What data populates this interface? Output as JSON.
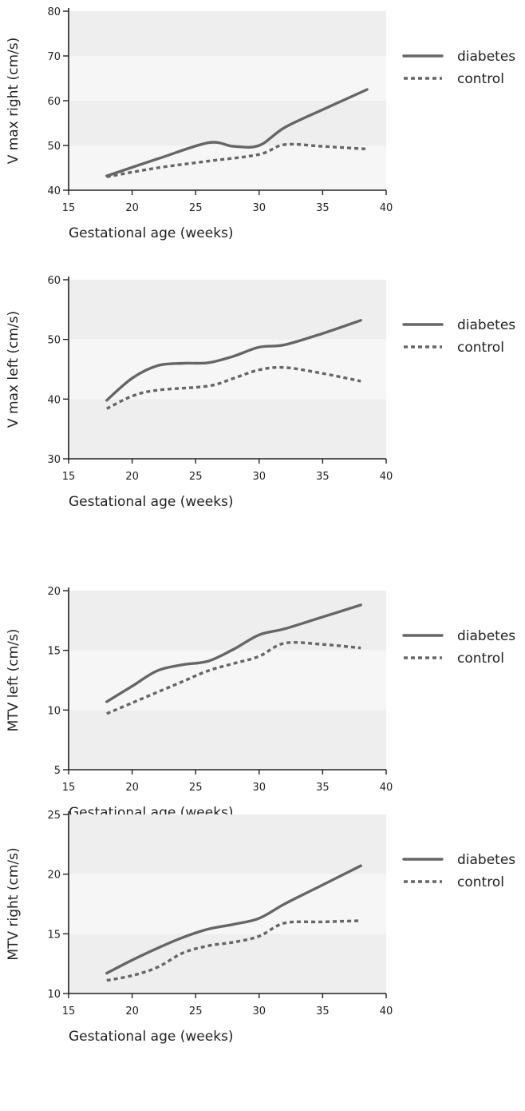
{
  "chart_data": [
    {
      "type": "line",
      "xlabel": "Gestational age (weeks)",
      "ylabel": "V max right (cm/s)",
      "xlim": [
        15,
        40
      ],
      "ylim": [
        40,
        80
      ],
      "xticks": [
        15,
        20,
        25,
        30,
        35,
        40
      ],
      "yticks": [
        40,
        50,
        60,
        70,
        80
      ],
      "legend": "right",
      "series": [
        {
          "name": "diabetes",
          "style": "solid",
          "color": "#666666",
          "x": [
            18,
            22,
            26,
            28,
            30,
            32,
            35,
            38.5
          ],
          "y": [
            43.2,
            47,
            50.6,
            49.8,
            50,
            54,
            58,
            62.5
          ]
        },
        {
          "name": "control",
          "style": "dotted",
          "color": "#666666",
          "x": [
            18,
            22,
            26,
            30,
            32,
            35,
            38.5
          ],
          "y": [
            43,
            45,
            46.5,
            48,
            50.2,
            49.8,
            49.2
          ]
        }
      ]
    },
    {
      "type": "line",
      "xlabel": "Gestational age (weeks)",
      "ylabel": "V max left (cm/s)",
      "xlim": [
        15,
        40
      ],
      "ylim": [
        30,
        60
      ],
      "xticks": [
        15,
        20,
        25,
        30,
        35,
        40
      ],
      "yticks": [
        30,
        40,
        50,
        60
      ],
      "legend": "right",
      "series": [
        {
          "name": "diabetes",
          "style": "solid",
          "color": "#666666",
          "x": [
            18,
            20,
            22,
            24,
            26,
            28,
            30,
            32,
            35,
            38
          ],
          "y": [
            39.8,
            43.5,
            45.6,
            46,
            46.1,
            47.2,
            48.7,
            49.1,
            51,
            53.2
          ]
        },
        {
          "name": "control",
          "style": "dotted",
          "color": "#666666",
          "x": [
            18,
            20,
            22,
            26,
            28,
            30,
            32,
            35,
            38
          ],
          "y": [
            38.4,
            40.5,
            41.5,
            42.2,
            43.5,
            44.9,
            45.3,
            44.3,
            43
          ]
        }
      ]
    },
    {
      "type": "line",
      "xlabel": "Gestational age (weeks)",
      "ylabel": "MTV left (cm/s)",
      "xlim": [
        15,
        40
      ],
      "ylim": [
        5,
        20
      ],
      "xticks": [
        15,
        20,
        25,
        30,
        35,
        40
      ],
      "yticks": [
        5,
        10,
        15,
        20
      ],
      "legend": "right",
      "series": [
        {
          "name": "diabetes",
          "style": "solid",
          "color": "#666666",
          "x": [
            18,
            20,
            22,
            24,
            26,
            28,
            30,
            32,
            35,
            38
          ],
          "y": [
            10.7,
            12,
            13.3,
            13.8,
            14.1,
            15.1,
            16.3,
            16.8,
            17.8,
            18.8
          ]
        },
        {
          "name": "control",
          "style": "dotted",
          "color": "#666666",
          "x": [
            18,
            20,
            22,
            24,
            26,
            28,
            30,
            32,
            35,
            38
          ],
          "y": [
            9.7,
            10.6,
            11.5,
            12.4,
            13.3,
            13.9,
            14.5,
            15.6,
            15.5,
            15.2
          ]
        }
      ]
    },
    {
      "type": "line",
      "xlabel": "Gestational age (weeks)",
      "ylabel": "MTV right (cm/s)",
      "xlim": [
        15,
        40
      ],
      "ylim": [
        10,
        25
      ],
      "xticks": [
        15,
        20,
        25,
        30,
        35,
        40
      ],
      "yticks": [
        10,
        15,
        20,
        25
      ],
      "legend": "right",
      "series": [
        {
          "name": "diabetes",
          "style": "solid",
          "color": "#666666",
          "x": [
            18,
            20,
            22,
            24,
            26,
            28,
            30,
            32,
            35,
            38
          ],
          "y": [
            11.7,
            12.8,
            13.8,
            14.7,
            15.4,
            15.8,
            16.3,
            17.5,
            19.1,
            20.7
          ]
        },
        {
          "name": "control",
          "style": "dotted",
          "color": "#666666",
          "x": [
            18,
            20,
            22,
            24,
            26,
            28,
            30,
            32,
            35,
            38
          ],
          "y": [
            11.1,
            11.5,
            12.2,
            13.4,
            14,
            14.3,
            14.8,
            15.9,
            16,
            16.1
          ]
        }
      ]
    }
  ]
}
